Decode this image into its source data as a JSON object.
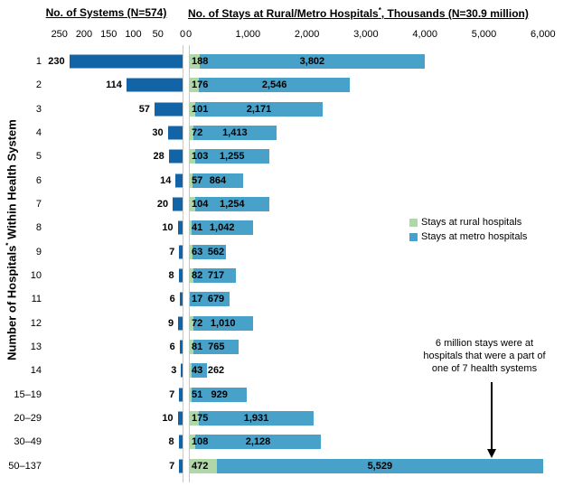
{
  "colors": {
    "systems_bar": "#1264A7",
    "rural": "#AFD7A8",
    "metro": "#48A1C8",
    "axis_line": "#C9C9C9",
    "text": "#000000"
  },
  "left_chart": {
    "title": "No. of Systems (N=574)"
  },
  "right_chart": {
    "title_pre": "No. of Stays at Rural/Metro Hospitals",
    "title_sup": "*",
    "title_post": ", Thousands (N=30.9 million)"
  },
  "y_axis": {
    "title_pre": "Number of Hospitals",
    "title_sup": "*",
    "title_post": " Within Health System"
  },
  "legend": {
    "items": [
      {
        "label": "Stays at rural hospitals",
        "color": "#AFD7A8"
      },
      {
        "label": "Stays at metro hospitals",
        "color": "#48A1C8"
      }
    ]
  },
  "annotation": {
    "lines": [
      "6 million stays were at",
      "hospitals that were a part of",
      "one of 7 health systems"
    ]
  },
  "chart_data": {
    "type": "bar",
    "orientation": "horizontal-paired",
    "ylabel": "Number of Hospitals* Within Health System",
    "left": {
      "title": "No. of Systems (N=574)",
      "total": 574,
      "xlim": [
        250,
        0
      ],
      "ticks": [
        "250",
        "200",
        "150",
        "100",
        "50",
        "0"
      ],
      "tick_values": [
        250,
        200,
        150,
        100,
        50,
        0
      ]
    },
    "right": {
      "title": "No. of Stays at Rural/Metro Hospitals*, Thousands (N=30.9 million)",
      "total": "30.9 million",
      "xlim": [
        0,
        6500
      ],
      "ticks": [
        "0",
        "1,000",
        "2,000",
        "3,000",
        "4,000",
        "5,000",
        "6,000"
      ],
      "tick_values": [
        0,
        1000,
        2000,
        3000,
        4000,
        5000,
        6000
      ],
      "stacked_series": [
        "Stays at rural hospitals",
        "Stays at metro hospitals"
      ],
      "legend_position": "right"
    },
    "grid": false,
    "categories": [
      "1",
      "2",
      "3",
      "4",
      "5",
      "6",
      "7",
      "8",
      "9",
      "10",
      "11",
      "12",
      "13",
      "14",
      "15–19",
      "20–29",
      "30–49",
      "50–137"
    ],
    "rows": [
      {
        "category": "1",
        "systems": 230,
        "rural": 188,
        "metro": 3802,
        "systems_label": "230",
        "rural_label": "188",
        "metro_label": "3,802"
      },
      {
        "category": "2",
        "systems": 114,
        "rural": 176,
        "metro": 2546,
        "systems_label": "114",
        "rural_label": "176",
        "metro_label": "2,546"
      },
      {
        "category": "3",
        "systems": 57,
        "rural": 101,
        "metro": 2171,
        "systems_label": "57",
        "rural_label": "101",
        "metro_label": "2,171"
      },
      {
        "category": "4",
        "systems": 30,
        "rural": 72,
        "metro": 1413,
        "systems_label": "30",
        "rural_label": "72",
        "metro_label": "1,413"
      },
      {
        "category": "5",
        "systems": 28,
        "rural": 103,
        "metro": 1255,
        "systems_label": "28",
        "rural_label": "103",
        "metro_label": "1,255"
      },
      {
        "category": "6",
        "systems": 14,
        "rural": 57,
        "metro": 864,
        "systems_label": "14",
        "rural_label": "57",
        "metro_label": "864"
      },
      {
        "category": "7",
        "systems": 20,
        "rural": 104,
        "metro": 1254,
        "systems_label": "20",
        "rural_label": "104",
        "metro_label": "1,254"
      },
      {
        "category": "8",
        "systems": 10,
        "rural": 41,
        "metro": 1042,
        "systems_label": "10",
        "rural_label": "41",
        "metro_label": "1,042"
      },
      {
        "category": "9",
        "systems": 7,
        "rural": 63,
        "metro": 562,
        "systems_label": "7",
        "rural_label": "63",
        "metro_label": "562"
      },
      {
        "category": "10",
        "systems": 8,
        "rural": 82,
        "metro": 717,
        "systems_label": "8",
        "rural_label": "82",
        "metro_label": "717"
      },
      {
        "category": "11",
        "systems": 6,
        "rural": 17,
        "metro": 679,
        "systems_label": "6",
        "rural_label": "17",
        "metro_label": "679"
      },
      {
        "category": "12",
        "systems": 9,
        "rural": 72,
        "metro": 1010,
        "systems_label": "9",
        "rural_label": "72",
        "metro_label": "1,010"
      },
      {
        "category": "13",
        "systems": 6,
        "rural": 81,
        "metro": 765,
        "systems_label": "6",
        "rural_label": "81",
        "metro_label": "765"
      },
      {
        "category": "14",
        "systems": 3,
        "rural": 43,
        "metro": 262,
        "systems_label": "3",
        "rural_label": "43",
        "metro_label": "262"
      },
      {
        "category": "15–19",
        "systems": 7,
        "rural": 51,
        "metro": 929,
        "systems_label": "7",
        "rural_label": "51",
        "metro_label": "929"
      },
      {
        "category": "20–29",
        "systems": 10,
        "rural": 175,
        "metro": 1931,
        "systems_label": "10",
        "rural_label": "175",
        "metro_label": "1,931"
      },
      {
        "category": "30–49",
        "systems": 8,
        "rural": 108,
        "metro": 2128,
        "systems_label": "8",
        "rural_label": "108",
        "metro_label": "2,128"
      },
      {
        "category": "50–137",
        "systems": 7,
        "rural": 472,
        "metro": 5529,
        "systems_label": "7",
        "rural_label": "472",
        "metro_label": "5,529"
      }
    ]
  }
}
